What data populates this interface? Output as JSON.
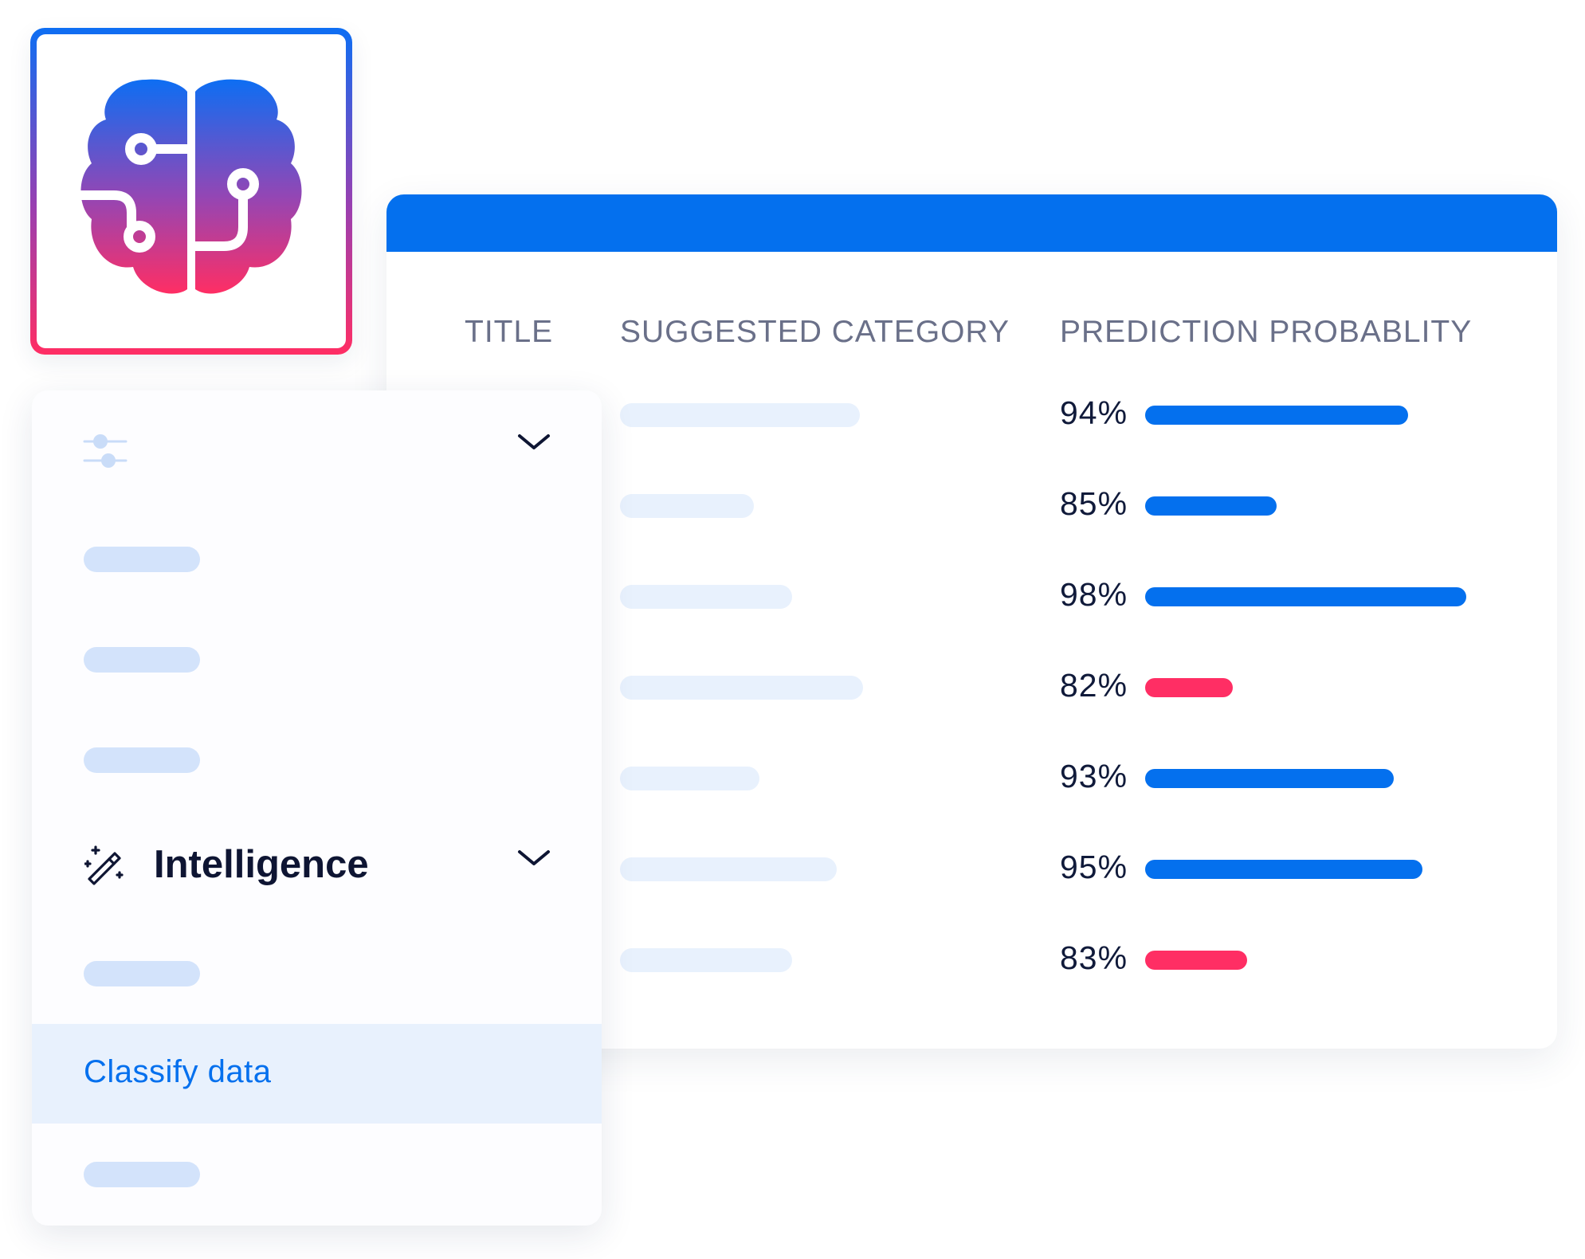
{
  "brand": {
    "logo_icon": "brain-circuit-icon",
    "gradient_top": "#0d6ef3",
    "gradient_bottom": "#ff2e64"
  },
  "table": {
    "header_color": "#0470ee",
    "columns": {
      "title": "TITLE",
      "category": "SUGGESTED CATEGORY",
      "probability": "PREDICTION PROBABLITY"
    },
    "rows": [
      {
        "percent_label": "94%",
        "probability": 0.94,
        "status": "high"
      },
      {
        "percent_label": "85%",
        "probability": 0.85,
        "status": "high"
      },
      {
        "percent_label": "98%",
        "probability": 0.98,
        "status": "high"
      },
      {
        "percent_label": "82%",
        "probability": 0.82,
        "status": "low"
      },
      {
        "percent_label": "93%",
        "probability": 0.93,
        "status": "high"
      },
      {
        "percent_label": "95%",
        "probability": 0.95,
        "status": "high"
      },
      {
        "percent_label": "83%",
        "probability": 0.83,
        "status": "low"
      }
    ],
    "colors": {
      "high": "#0470ee",
      "low": "#ff2e64"
    }
  },
  "sidebar": {
    "filters_icon": "sliders-icon",
    "expand_icon": "chevron-down-icon",
    "section_icon": "magic-wand-icon",
    "section_title": "Intelligence",
    "active_item_label": "Classify data"
  }
}
